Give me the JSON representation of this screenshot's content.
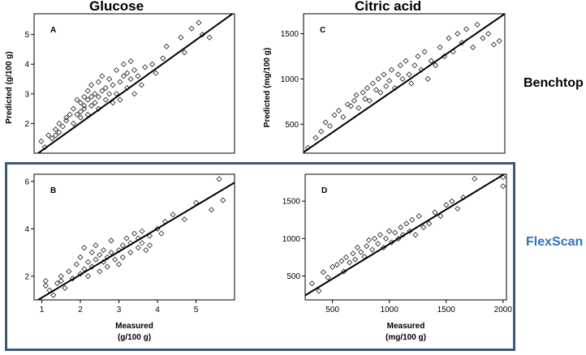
{
  "column_titles": [
    "Glucose",
    "Citric acid"
  ],
  "row_labels": {
    "benchtop": "Benchtop",
    "flexscan": "FlexScan",
    "flexscan_color": "#2e75b6"
  },
  "chart_data": [
    {
      "id": "A",
      "type": "scatter",
      "label": "A",
      "ylabel": "Predicted  (g/100 g)",
      "xlabel": "",
      "xlim": [
        0.9,
        6.5
      ],
      "ylim": [
        1.0,
        5.7
      ],
      "yticks": [
        "2",
        "3",
        "4",
        "5"
      ],
      "xticks": [],
      "fit_line": [
        [
          0.9,
          0.9
        ],
        [
          6.5,
          5.75
        ]
      ],
      "x": [
        1.1,
        1.2,
        1.3,
        1.4,
        1.5,
        1.5,
        1.6,
        1.6,
        1.7,
        1.8,
        1.8,
        1.9,
        2.0,
        2.0,
        2.1,
        2.1,
        2.2,
        2.2,
        2.2,
        2.3,
        2.3,
        2.3,
        2.4,
        2.4,
        2.4,
        2.5,
        2.5,
        2.5,
        2.6,
        2.6,
        2.7,
        2.7,
        2.7,
        2.8,
        2.8,
        2.9,
        2.9,
        3.0,
        3.0,
        3.1,
        3.1,
        3.2,
        3.2,
        3.3,
        3.3,
        3.4,
        3.4,
        3.5,
        3.5,
        3.6,
        3.6,
        3.7,
        3.7,
        3.8,
        3.9,
        4.0,
        4.2,
        4.3,
        4.5,
        4.6,
        5.0,
        5.1,
        5.3,
        5.5,
        5.6,
        5.8
      ],
      "y": [
        1.4,
        1.2,
        1.6,
        1.5,
        1.8,
        1.6,
        2.0,
        1.7,
        1.9,
        2.1,
        2.2,
        2.3,
        2.0,
        2.5,
        2.3,
        2.8,
        2.4,
        2.7,
        2.2,
        2.9,
        2.5,
        2.6,
        2.8,
        2.3,
        3.1,
        2.6,
        2.9,
        3.3,
        2.7,
        3.0,
        3.4,
        2.5,
        2.9,
        3.1,
        3.6,
        2.8,
        3.2,
        3.0,
        3.5,
        2.7,
        3.3,
        3.8,
        3.0,
        3.4,
        2.8,
        3.6,
        4.0,
        3.2,
        3.7,
        3.5,
        4.1,
        3.0,
        3.8,
        3.6,
        3.3,
        3.9,
        4.0,
        3.7,
        4.2,
        4.6,
        4.9,
        4.4,
        5.2,
        5.4,
        5.0,
        4.9
      ]
    },
    {
      "id": "C",
      "type": "scatter",
      "label": "C",
      "ylabel": "Predicted  (mg/100 g)",
      "xlabel": "",
      "xlim": [
        220,
        2050
      ],
      "ylim": [
        180,
        1720
      ],
      "yticks": [
        "500",
        "1000",
        "1500"
      ],
      "xticks": [],
      "fit_line": [
        [
          220,
          190
        ],
        [
          2050,
          1720
        ]
      ],
      "x": [
        260,
        330,
        380,
        420,
        460,
        500,
        540,
        580,
        620,
        650,
        680,
        700,
        720,
        760,
        780,
        800,
        820,
        850,
        880,
        900,
        920,
        950,
        970,
        1000,
        1020,
        1050,
        1080,
        1100,
        1120,
        1150,
        1180,
        1200,
        1230,
        1260,
        1290,
        1320,
        1350,
        1380,
        1420,
        1460,
        1500,
        1540,
        1580,
        1620,
        1660,
        1700,
        1760,
        1800,
        1850,
        1900,
        1950,
        2000
      ],
      "x_note": "",
      "y": [
        240,
        350,
        420,
        520,
        480,
        600,
        650,
        580,
        720,
        700,
        760,
        820,
        680,
        850,
        780,
        900,
        760,
        950,
        880,
        1000,
        850,
        1050,
        920,
        980,
        1100,
        900,
        1050,
        1150,
        1000,
        1200,
        1050,
        950,
        1150,
        1250,
        1100,
        1300,
        1000,
        1200,
        1150,
        1350,
        1250,
        1450,
        1300,
        1500,
        1400,
        1550,
        1350,
        1600,
        1450,
        1500,
        1380,
        1420
      ]
    },
    {
      "id": "B",
      "type": "scatter",
      "label": "B",
      "ylabel": "",
      "xlabel": "Measured\n(g/100 g)",
      "xlim": [
        0.8,
        6.0
      ],
      "ylim": [
        1.0,
        6.3
      ],
      "yticks": [
        "2",
        "4",
        "6"
      ],
      "xticks": [
        "1",
        "2",
        "3",
        "4",
        "5"
      ],
      "fit_line": [
        [
          0.8,
          0.9
        ],
        [
          6.0,
          5.95
        ]
      ],
      "x": [
        1.1,
        1.1,
        1.2,
        1.3,
        1.4,
        1.5,
        1.5,
        1.6,
        1.7,
        1.8,
        1.9,
        2.0,
        2.0,
        2.1,
        2.1,
        2.2,
        2.2,
        2.3,
        2.3,
        2.4,
        2.4,
        2.5,
        2.5,
        2.6,
        2.6,
        2.7,
        2.7,
        2.8,
        2.8,
        2.9,
        3.0,
        3.0,
        3.1,
        3.1,
        3.2,
        3.3,
        3.3,
        3.4,
        3.5,
        3.5,
        3.6,
        3.6,
        3.7,
        3.8,
        3.8,
        4.0,
        4.1,
        4.2,
        4.4,
        4.7,
        5.0,
        5.4,
        5.6,
        5.7
      ],
      "y": [
        1.6,
        1.8,
        1.4,
        1.2,
        1.7,
        1.8,
        2.0,
        1.5,
        2.2,
        1.9,
        2.5,
        2.1,
        2.8,
        2.3,
        3.2,
        2.6,
        2.0,
        3.0,
        2.4,
        2.7,
        3.3,
        2.2,
        2.9,
        2.6,
        3.1,
        2.4,
        2.8,
        3.0,
        3.5,
        2.7,
        3.1,
        2.5,
        3.3,
        2.8,
        3.6,
        3.0,
        3.4,
        3.8,
        3.2,
        3.6,
        3.4,
        3.9,
        3.1,
        3.7,
        3.3,
        4.0,
        3.8,
        4.3,
        4.6,
        4.4,
        5.1,
        4.8,
        6.1,
        5.2
      ]
    },
    {
      "id": "D",
      "type": "scatter",
      "label": "D",
      "ylabel": "",
      "xlabel": "Measured\n(mg/100 g)",
      "xlim": [
        260,
        2030
      ],
      "ylim": [
        180,
        1860
      ],
      "yticks": [
        "500",
        "1000",
        "1500"
      ],
      "xticks": [
        "500",
        "1000",
        "1500",
        "2000"
      ],
      "fit_line": [
        [
          260,
          240
        ],
        [
          2030,
          1880
        ]
      ],
      "x": [
        320,
        380,
        420,
        460,
        500,
        540,
        580,
        600,
        620,
        650,
        680,
        700,
        720,
        750,
        780,
        800,
        820,
        850,
        870,
        900,
        920,
        950,
        970,
        1000,
        1020,
        1050,
        1080,
        1100,
        1120,
        1150,
        1180,
        1200,
        1230,
        1260,
        1300,
        1350,
        1400,
        1450,
        1500,
        1550,
        1600,
        1650,
        1750,
        2000,
        2000
      ],
      "y": [
        400,
        300,
        550,
        480,
        620,
        650,
        700,
        560,
        750,
        680,
        800,
        720,
        880,
        820,
        760,
        900,
        980,
        850,
        1000,
        930,
        1050,
        880,
        1000,
        1100,
        950,
        1080,
        1000,
        1150,
        1050,
        1200,
        1100,
        1250,
        1050,
        1300,
        1150,
        1200,
        1350,
        1300,
        1450,
        1500,
        1400,
        1550,
        1800,
        1820,
        1700
      ]
    }
  ]
}
